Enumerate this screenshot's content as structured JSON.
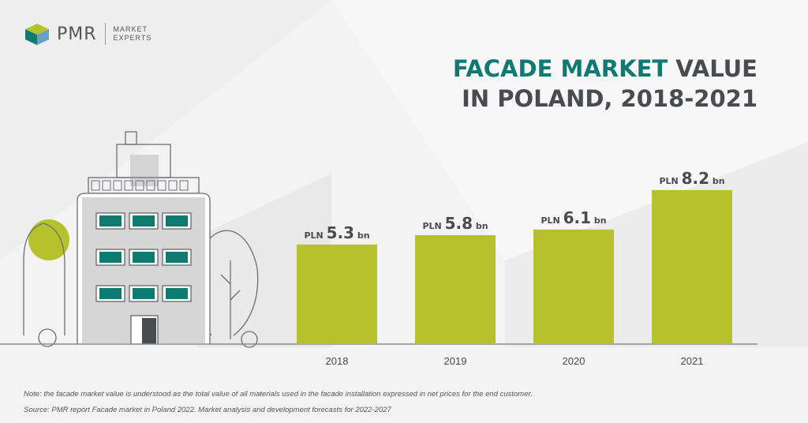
{
  "brand": {
    "name": "PMR",
    "tagline_line1": "MARKET",
    "tagline_line2": "EXPERTS"
  },
  "title": {
    "accent": "FACADE MARKET",
    "rest_line1": " VALUE",
    "line2": "IN POLAND, 2018-2021"
  },
  "chart_data": {
    "type": "bar",
    "categories": [
      "2018",
      "2019",
      "2020",
      "2021"
    ],
    "values": [
      5.3,
      5.8,
      6.1,
      8.2
    ],
    "label_prefix": "PLN",
    "label_suffix": "bn",
    "value_labels": [
      "5.3",
      "5.8",
      "6.1",
      "8.2"
    ],
    "ylim": [
      0,
      10
    ],
    "grid": false,
    "xlabel": "",
    "ylabel": "",
    "bar_color": "#b5c22b"
  },
  "colors": {
    "accent": "#0f7a72",
    "bar": "#b5c22b",
    "text": "#4a4b4e"
  },
  "notes": {
    "note": "Note: the facade market value is understood as the total value of all materials used in the facade installation expressed in net prices for the end customer.",
    "source": "Source: PMR report Facade market in Poland 2022. Market analysis and development forecasts for 2022-2027"
  }
}
